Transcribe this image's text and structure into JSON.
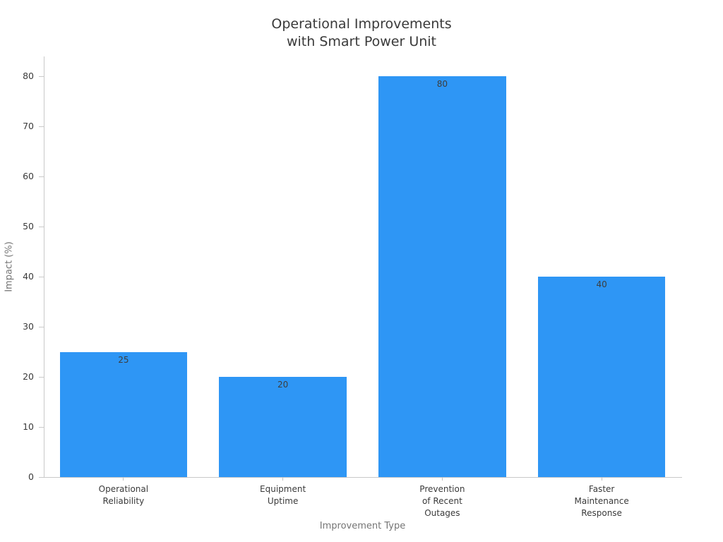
{
  "chart_data": {
    "type": "bar",
    "title": "Operational Improvements\nwith Smart Power Unit",
    "categories": [
      "Operational\nReliability",
      "Equipment\nUptime",
      "Prevention\nof Recent\nOutages",
      "Faster\nMaintenance\nResponse"
    ],
    "values": [
      25,
      20,
      80,
      40
    ],
    "value_labels": [
      "25",
      "20",
      "80",
      "40"
    ],
    "xlabel": "Improvement Type",
    "ylabel": "Impact (%)",
    "ylim": [
      0,
      84
    ],
    "yticks": [
      0,
      10,
      20,
      30,
      40,
      50,
      60,
      70,
      80
    ],
    "bar_width_fraction": 0.8,
    "grid": false,
    "legend": null,
    "colors": {
      "bar": "#2E96F5",
      "title_text": "#3a3a3a",
      "tick_text": "#3a3a3a",
      "axis_title_text": "#757575",
      "spine": "#c9c9c9",
      "background": "#ffffff"
    }
  }
}
